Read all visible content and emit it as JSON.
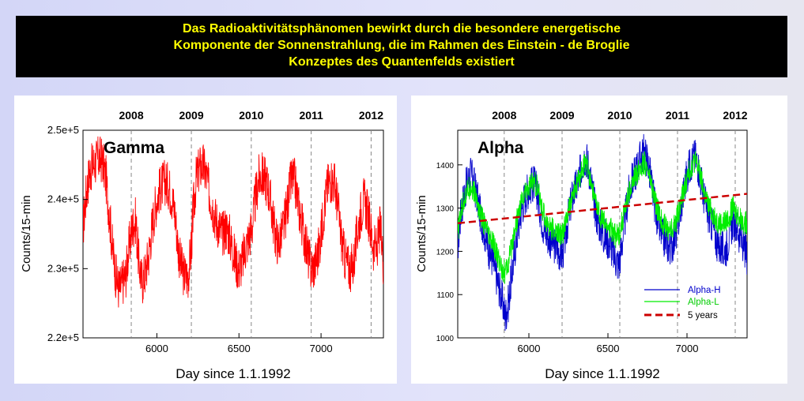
{
  "header": {
    "lines": [
      "Das Radioaktivitätsphänomen bewirkt durch die besondere energetische",
      "Komponente der Sonnenstrahlung, die im Rahmen des Einstein - de Broglie",
      "Konzeptes des Quantenfelds existiert"
    ]
  },
  "colors": {
    "banner_bg": "#000000",
    "banner_text": "#ffff00",
    "gamma": "#ff0000",
    "alpha_h": "#0000cc",
    "alpha_l": "#00ee00",
    "trend": "#cc0000"
  },
  "chart_data": [
    {
      "type": "line",
      "panel": "gamma",
      "title": "Gamma",
      "xlabel": "Day since 1.1.1992",
      "ylabel": "Counts/15-min",
      "xlim": [
        5550,
        7380
      ],
      "ylim": [
        220000.0,
        250000.0
      ],
      "x_ticks": [
        "6000",
        "6500",
        "7000"
      ],
      "y_ticks": [
        "2.2e+5",
        "2.3e+5",
        "2.4e+5",
        "2.5e+5"
      ],
      "years": [
        "2008",
        "2009",
        "2010",
        "2011",
        "2012"
      ],
      "year_days": [
        5844,
        6210,
        6575,
        6940,
        7305
      ],
      "grid": false,
      "series": [
        {
          "color": "#ff0000",
          "x": [
            5550,
            5570,
            5590,
            5610,
            5630,
            5650,
            5670,
            5690,
            5710,
            5730,
            5750,
            5770,
            5790,
            5810,
            5830,
            5850,
            5870,
            5890,
            5910,
            5930,
            5950,
            5970,
            5990,
            6010,
            6030,
            6050,
            6070,
            6090,
            6110,
            6130,
            6150,
            6170,
            6190,
            6210,
            6220,
            6240,
            6260,
            6280,
            6300,
            6320,
            6340,
            6360,
            6380,
            6400,
            6420,
            6440,
            6460,
            6480,
            6500,
            6520,
            6540,
            6560,
            6580,
            6600,
            6620,
            6640,
            6660,
            6680,
            6700,
            6720,
            6740,
            6760,
            6780,
            6800,
            6820,
            6840,
            6860,
            6880,
            6900,
            6920,
            6940,
            6960,
            6980,
            7000,
            7020,
            7040,
            7060,
            7080,
            7100,
            7120,
            7140,
            7160,
            7180,
            7200,
            7220,
            7240,
            7260,
            7280,
            7300,
            7320,
            7340,
            7360,
            7380
          ],
          "y": [
            236000,
            241000,
            244000,
            245000,
            245500,
            246000,
            245500,
            243000,
            238000,
            233000,
            229000,
            227000,
            228000,
            229000,
            233000,
            236000,
            237000,
            231000,
            228000,
            229500,
            232000,
            236000,
            239000,
            241000,
            242000,
            242500,
            242000,
            240500,
            238000,
            233000,
            230000,
            229000,
            229000,
            233000,
            238000,
            243000,
            244500,
            245000,
            243500,
            241000,
            239000,
            237000,
            236000,
            235000,
            236000,
            235000,
            233000,
            231000,
            230000,
            231000,
            233000,
            234500,
            236000,
            240000,
            243000,
            243500,
            243000,
            241500,
            238500,
            235000,
            233500,
            235000,
            237000,
            240000,
            243000,
            242500,
            239500,
            237000,
            234500,
            232000,
            230000,
            230500,
            232000,
            235000,
            239000,
            242000,
            243000,
            242500,
            239500,
            235000,
            232000,
            230500,
            230000,
            231000,
            235000,
            238000,
            240000,
            238500,
            236000,
            233000,
            233000,
            236000,
            231000
          ]
        }
      ]
    },
    {
      "type": "line",
      "panel": "alpha",
      "title": "Alpha",
      "xlabel": "Day since 1.1.1992",
      "ylabel": "Counts/15-min",
      "xlim": [
        5550,
        7380
      ],
      "ylim": [
        1000,
        1480
      ],
      "x_ticks": [
        "6000",
        "6500",
        "7000"
      ],
      "y_ticks": [
        "1000",
        "1100",
        "1200",
        "1300",
        "1400"
      ],
      "years": [
        "2008",
        "2009",
        "2010",
        "2011",
        "2012"
      ],
      "year_days": [
        5844,
        6210,
        6575,
        6940,
        7305
      ],
      "grid": false,
      "legend": {
        "position": "bottom-right",
        "entries": [
          "Alpha-H",
          "Alpha-L",
          "5 years"
        ]
      },
      "series": [
        {
          "name": "Alpha-H",
          "color": "#0000cc",
          "x": [
            5550,
            5570,
            5590,
            5610,
            5630,
            5650,
            5670,
            5690,
            5710,
            5730,
            5750,
            5770,
            5790,
            5810,
            5830,
            5850,
            5870,
            5890,
            5910,
            5930,
            5950,
            5970,
            5990,
            6010,
            6030,
            6050,
            6070,
            6090,
            6110,
            6130,
            6150,
            6170,
            6190,
            6210,
            6230,
            6250,
            6270,
            6290,
            6310,
            6330,
            6350,
            6370,
            6390,
            6410,
            6430,
            6450,
            6470,
            6490,
            6510,
            6530,
            6550,
            6570,
            6590,
            6610,
            6630,
            6650,
            6670,
            6690,
            6710,
            6730,
            6750,
            6770,
            6790,
            6810,
            6830,
            6850,
            6870,
            6890,
            6910,
            6930,
            6950,
            6970,
            6990,
            7010,
            7030,
            7050,
            7070,
            7090,
            7110,
            7130,
            7150,
            7170,
            7190,
            7210,
            7230,
            7250,
            7270,
            7290,
            7310,
            7330,
            7350,
            7370,
            7380
          ],
          "y": [
            1210,
            1290,
            1330,
            1360,
            1380,
            1360,
            1330,
            1290,
            1260,
            1230,
            1200,
            1180,
            1150,
            1120,
            1090,
            1050,
            1080,
            1140,
            1200,
            1250,
            1290,
            1320,
            1340,
            1350,
            1360,
            1340,
            1300,
            1260,
            1240,
            1230,
            1220,
            1210,
            1200,
            1190,
            1230,
            1280,
            1320,
            1340,
            1360,
            1390,
            1420,
            1410,
            1370,
            1320,
            1280,
            1260,
            1240,
            1230,
            1220,
            1200,
            1180,
            1170,
            1220,
            1280,
            1330,
            1360,
            1380,
            1400,
            1420,
            1430,
            1410,
            1370,
            1320,
            1280,
            1250,
            1230,
            1220,
            1210,
            1220,
            1240,
            1280,
            1320,
            1360,
            1390,
            1410,
            1420,
            1400,
            1360,
            1320,
            1290,
            1270,
            1250,
            1220,
            1210,
            1200,
            1210,
            1240,
            1270,
            1260,
            1240,
            1220,
            1200,
            1190
          ]
        },
        {
          "name": "Alpha-L",
          "color": "#00ee00",
          "x": [
            5550,
            5570,
            5590,
            5610,
            5630,
            5650,
            5670,
            5690,
            5710,
            5730,
            5750,
            5770,
            5790,
            5810,
            5830,
            5850,
            5870,
            5890,
            5910,
            5930,
            5950,
            5970,
            5990,
            6010,
            6030,
            6050,
            6070,
            6090,
            6110,
            6130,
            6150,
            6170,
            6190,
            6210,
            6230,
            6250,
            6270,
            6290,
            6310,
            6330,
            6350,
            6370,
            6390,
            6410,
            6430,
            6450,
            6470,
            6490,
            6510,
            6530,
            6550,
            6570,
            6590,
            6610,
            6630,
            6650,
            6670,
            6690,
            6710,
            6730,
            6750,
            6770,
            6790,
            6810,
            6830,
            6850,
            6870,
            6890,
            6910,
            6930,
            6950,
            6970,
            6990,
            7010,
            7030,
            7050,
            7070,
            7090,
            7110,
            7130,
            7150,
            7170,
            7190,
            7210,
            7230,
            7250,
            7270,
            7290,
            7310,
            7330,
            7350,
            7370,
            7380
          ],
          "y": [
            1240,
            1290,
            1320,
            1340,
            1350,
            1340,
            1320,
            1290,
            1270,
            1250,
            1230,
            1220,
            1200,
            1180,
            1160,
            1150,
            1170,
            1210,
            1250,
            1280,
            1310,
            1330,
            1345,
            1355,
            1360,
            1350,
            1320,
            1290,
            1270,
            1260,
            1250,
            1245,
            1240,
            1240,
            1260,
            1290,
            1320,
            1340,
            1360,
            1380,
            1400,
            1395,
            1370,
            1330,
            1300,
            1285,
            1270,
            1260,
            1255,
            1245,
            1235,
            1240,
            1270,
            1300,
            1330,
            1350,
            1370,
            1385,
            1400,
            1405,
            1390,
            1360,
            1330,
            1300,
            1280,
            1265,
            1255,
            1250,
            1255,
            1270,
            1295,
            1325,
            1355,
            1380,
            1400,
            1410,
            1395,
            1365,
            1335,
            1310,
            1295,
            1285,
            1270,
            1265,
            1265,
            1270,
            1285,
            1300,
            1290,
            1280,
            1270,
            1265,
            1270
          ]
        },
        {
          "name": "5 years",
          "color": "#cc0000",
          "style": "dashed",
          "x": [
            5550,
            7380
          ],
          "y": [
            1265,
            1333
          ]
        }
      ]
    }
  ]
}
